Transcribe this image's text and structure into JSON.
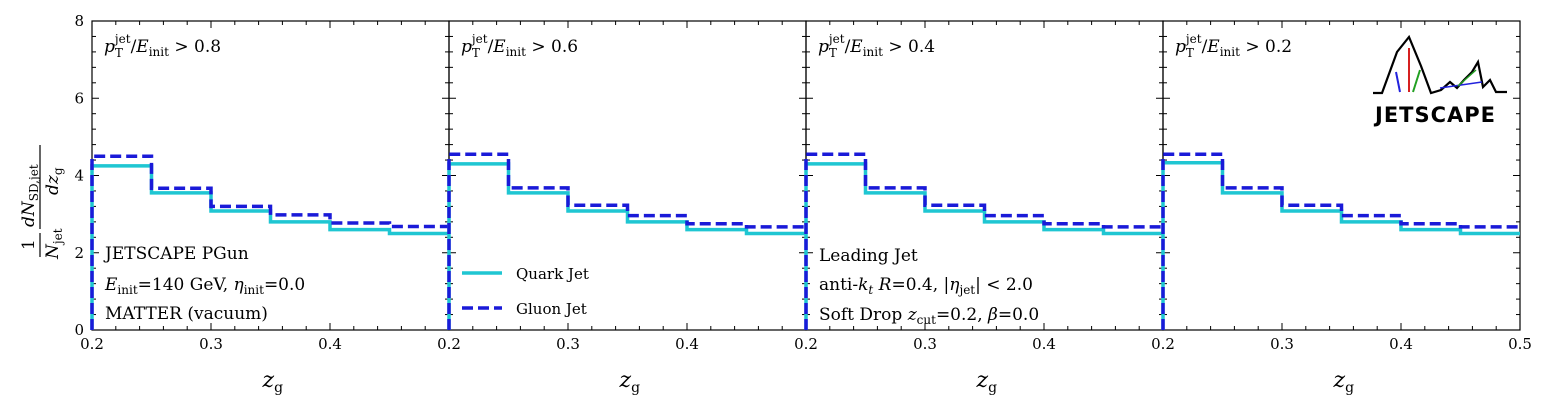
{
  "chart_data": {
    "type": "histogram-step",
    "panels": [
      {
        "title": "p_T^jet / E_init > 0.8",
        "title_main": "p",
        "title_sup": "jet",
        "title_sub": "T",
        "title_rest": "/E",
        "title_sub2": "init",
        "title_cut": " > 0.8",
        "bins": [
          0.2,
          0.25,
          0.3,
          0.35,
          0.4,
          0.45,
          0.5
        ],
        "series": [
          {
            "name": "Quark Jet",
            "values": [
              4.25,
              3.55,
              3.08,
              2.8,
              2.6,
              2.5
            ]
          },
          {
            "name": "Gluon Jet",
            "values": [
              4.5,
              3.67,
              3.2,
              2.98,
              2.77,
              2.68
            ]
          }
        ],
        "annotations": [
          "JETSCAPE PGun",
          "E_init=140 GeV, η_init=0.0",
          "MATTER (vacuum)"
        ]
      },
      {
        "title": "p_T^jet / E_init > 0.6",
        "title_cut": " > 0.6",
        "bins": [
          0.2,
          0.25,
          0.3,
          0.35,
          0.4,
          0.45,
          0.5
        ],
        "series": [
          {
            "name": "Quark Jet",
            "values": [
              4.3,
              3.55,
              3.08,
              2.8,
              2.6,
              2.5
            ]
          },
          {
            "name": "Gluon Jet",
            "values": [
              4.55,
              3.68,
              3.23,
              2.96,
              2.75,
              2.67
            ]
          }
        ],
        "legend": [
          "Quark Jet",
          "Gluon Jet"
        ]
      },
      {
        "title": "p_T^jet / E_init > 0.4",
        "title_cut": " > 0.4",
        "bins": [
          0.2,
          0.25,
          0.3,
          0.35,
          0.4,
          0.45,
          0.5
        ],
        "series": [
          {
            "name": "Quark Jet",
            "values": [
              4.3,
              3.55,
              3.08,
              2.8,
              2.6,
              2.5
            ]
          },
          {
            "name": "Gluon Jet",
            "values": [
              4.55,
              3.68,
              3.23,
              2.96,
              2.75,
              2.67
            ]
          }
        ],
        "annotations": [
          "Leading Jet",
          "anti-k_t R=0.4, |η_jet| < 2.0",
          "Soft Drop z_cut=0.2, β=0.0"
        ]
      },
      {
        "title": "p_T^jet / E_init > 0.2",
        "title_cut": " > 0.2",
        "bins": [
          0.2,
          0.25,
          0.3,
          0.35,
          0.4,
          0.45,
          0.5
        ],
        "series": [
          {
            "name": "Quark Jet",
            "values": [
              4.33,
              3.55,
              3.08,
              2.8,
              2.6,
              2.5
            ]
          },
          {
            "name": "Gluon Jet",
            "values": [
              4.55,
              3.68,
              3.23,
              2.96,
              2.75,
              2.67
            ]
          }
        ],
        "logo": "JETSCAPE"
      }
    ],
    "xlabel": "z_g",
    "ylabel": "1/N_jet dN_SD,jet/dz_g",
    "xlim": [
      0.2,
      0.5
    ],
    "ylim": [
      0,
      8
    ],
    "xticks": [
      "0.2",
      "0.3",
      "0.4",
      "0.2",
      "0.3",
      "0.4",
      "0.2",
      "0.3",
      "0.4",
      "0.2",
      "0.3",
      "0.4",
      "0.5"
    ],
    "yticks": [
      "0",
      "2",
      "4",
      "6",
      "8"
    ],
    "colors": {
      "quark": "#1fc6d2",
      "gluon": "#1a1ad8"
    }
  },
  "text": {
    "ann1_l1": "JETSCAPE PGun",
    "ann1_l2a": "E",
    "ann1_l2b": "init",
    "ann1_l2c": "=140 GeV, ",
    "ann1_l2d": "η",
    "ann1_l2e": "init",
    "ann1_l2f": "=0.0",
    "ann1_l3": "MATTER (vacuum)",
    "ann3_l1": "Leading Jet",
    "ann3_l2a": "anti-",
    "ann3_l2b": "k",
    "ann3_l2c": "t",
    "ann3_l2d": " R",
    "ann3_l2e": "=0.4, |",
    "ann3_l2f": "η",
    "ann3_l2g": "jet",
    "ann3_l2h": "| < 2.0",
    "ann3_l3a": "Soft Drop ",
    "ann3_l3b": "z",
    "ann3_l3c": "cut",
    "ann3_l3d": "=0.2, ",
    "ann3_l3e": "β",
    "ann3_l3f": "=0.0",
    "legend_quark": "Quark Jet",
    "legend_gluon": "Gluon Jet",
    "xlabel_main": "z",
    "xlabel_sub": "g",
    "ylabel_one": "1",
    "ylabel_njet": "N",
    "ylabel_njet_sub": "jet",
    "ylabel_dn": "dN",
    "ylabel_dn_sub": "SD,jet",
    "ylabel_dz": "dz",
    "ylabel_dz_sub": "g",
    "logo": "JETSCAPE"
  }
}
